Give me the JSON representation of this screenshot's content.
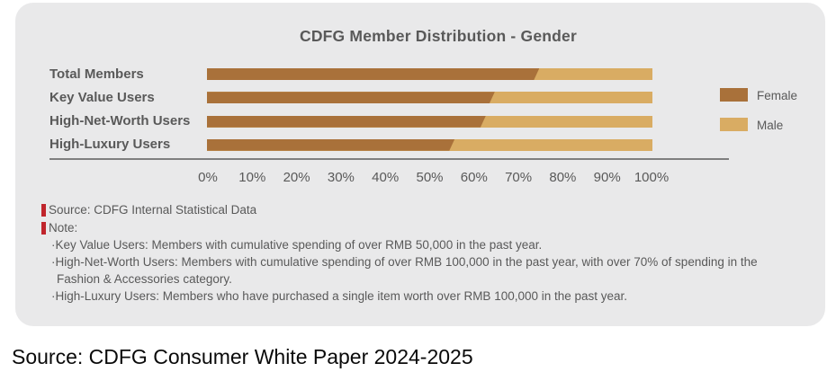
{
  "page": {
    "caption": "Source: CDFG Consumer White Paper 2024-2025"
  },
  "chart_data": {
    "type": "bar",
    "stacked": true,
    "orientation": "horizontal",
    "title": "CDFG Member Distribution - Gender",
    "categories": [
      "Total Members",
      "Key Value Users",
      "High-Net-Worth Users",
      "High-Luxury Users"
    ],
    "series": [
      {
        "name": "Female",
        "color": "#A9713A",
        "values": [
          74,
          64,
          62,
          55
        ]
      },
      {
        "name": "Male",
        "color": "#D9AC63",
        "values": [
          26,
          36,
          38,
          45
        ]
      }
    ],
    "unit": "%",
    "xlim": [
      0,
      100
    ],
    "x_ticks": [
      "0%",
      "10%",
      "20%",
      "30%",
      "40%",
      "50%",
      "60%",
      "70%",
      "80%",
      "90%",
      "100%"
    ],
    "legend_position": "right",
    "grid": false
  },
  "annotations": {
    "source_label": "Source: CDFG Internal Statistical Data",
    "note_label": "Note:",
    "marker_color": "#C0252C",
    "notes": [
      "·Key Value Users: Members with cumulative spending of over RMB 50,000 in the past year.",
      "·High-Net-Worth Users: Members with cumulative spending of over RMB 100,000 in the past year, with over 70% of spending in the Fashion & Accessories category.",
      "·High-Luxury Users: Members who have purchased a single item worth over RMB 100,000 in the past year."
    ]
  },
  "colors": {
    "card_background": "#E9E9EA",
    "text": "#595959",
    "axis_line": "#7F7F7F"
  }
}
